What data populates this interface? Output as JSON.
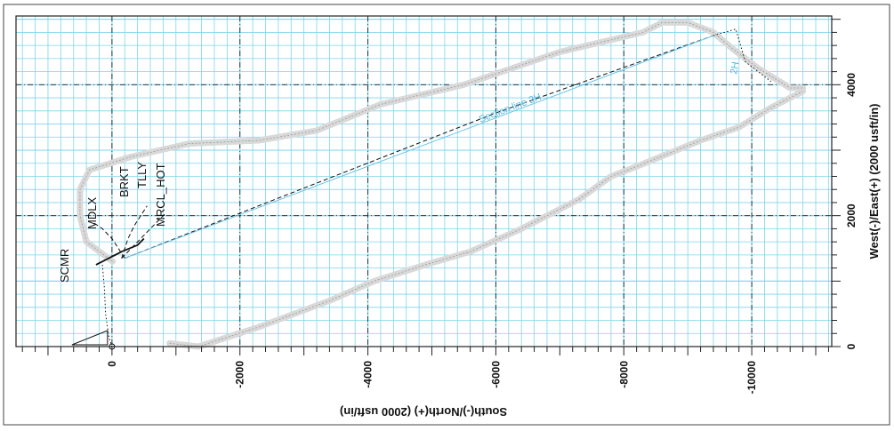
{
  "chart_data": {
    "type": "line",
    "title": "",
    "xlabel": "South(-)/North(+) (2000 usft/in)",
    "ylabel": "West(-)/East(+) (2000 usft/in)",
    "x_ticks": [
      "0",
      "-2000",
      "-4000",
      "-6000",
      "-8000",
      "-10000"
    ],
    "y_ticks": [
      "0",
      "2000",
      "4000"
    ],
    "xlim": [
      1500,
      -11250
    ],
    "ylim": [
      0,
      5050
    ],
    "grid": true,
    "grid_color": "#7fd3ee",
    "x_minor_step": 200,
    "y_minor_step": 200,
    "formation_labels": [
      "SCMR",
      "MDLX",
      "BRKT",
      "TLLY",
      "MRCL_HOT"
    ],
    "annotations": [
      "Section line 2H",
      "2H"
    ],
    "series": [
      {
        "style": "dashed",
        "points": [
          [
            -200,
            1350
          ],
          [
            -5950,
            3550
          ],
          [
            -9400,
            4750
          ]
        ]
      },
      {
        "style": "solid",
        "points": [
          [
            250,
            1250
          ],
          [
            50,
            1350
          ],
          [
            -150,
            1450
          ],
          [
            -400,
            1550
          ],
          [
            -500,
            1650
          ]
        ]
      },
      {
        "style": "dashed",
        "points": [
          [
            -200,
            1350
          ],
          [
            0,
            1650
          ],
          [
            150,
            1800
          ],
          [
            300,
            1900
          ]
        ]
      },
      {
        "style": "dashed",
        "points": [
          [
            -150,
            1350
          ],
          [
            -250,
            1650
          ],
          [
            -350,
            1850
          ],
          [
            -450,
            2000
          ],
          [
            -550,
            2150
          ]
        ]
      },
      {
        "style": "dashed",
        "points": [
          [
            -150,
            1350
          ],
          [
            -400,
            1600
          ],
          [
            -650,
            1850
          ],
          [
            -850,
            2050
          ]
        ]
      },
      {
        "style": "dotted",
        "points": [
          [
            150,
            1250
          ],
          [
            120,
            900
          ],
          [
            100,
            500
          ],
          [
            50,
            150
          ],
          [
            0,
            0
          ]
        ]
      },
      {
        "style": "dotted",
        "points": [
          [
            -9400,
            4750
          ],
          [
            -9750,
            4850
          ],
          [
            -9900,
            4350
          ],
          [
            -10300,
            4050
          ]
        ]
      }
    ],
    "buffer_band_upper": [
      [
        -10,
        1300
      ],
      [
        400,
        1600
      ],
      [
        500,
        2000
      ],
      [
        500,
        2400
      ],
      [
        350,
        2700
      ],
      [
        -300,
        2900
      ],
      [
        -1200,
        3100
      ],
      [
        -2300,
        3150
      ],
      [
        -3200,
        3300
      ],
      [
        -4200,
        3700
      ],
      [
        -5500,
        4000
      ],
      [
        -7000,
        4500
      ],
      [
        -8300,
        4800
      ],
      [
        -8600,
        4950
      ],
      [
        -9000,
        4950
      ],
      [
        -9400,
        4800
      ],
      [
        -9700,
        4550
      ],
      [
        -10100,
        4250
      ],
      [
        -10600,
        3950
      ],
      [
        -10800,
        3950
      ]
    ],
    "buffer_band_lower": [
      [
        -900,
        50
      ],
      [
        -1350,
        0
      ],
      [
        -2300,
        300
      ],
      [
        -3400,
        700
      ],
      [
        -4100,
        1000
      ],
      [
        -4900,
        1250
      ],
      [
        -5600,
        1450
      ],
      [
        -6400,
        1800
      ],
      [
        -7300,
        2250
      ],
      [
        -7800,
        2600
      ],
      [
        -8200,
        2750
      ],
      [
        -9200,
        3150
      ],
      [
        -9800,
        3350
      ],
      [
        -10300,
        3650
      ],
      [
        -10800,
        3900
      ]
    ]
  }
}
